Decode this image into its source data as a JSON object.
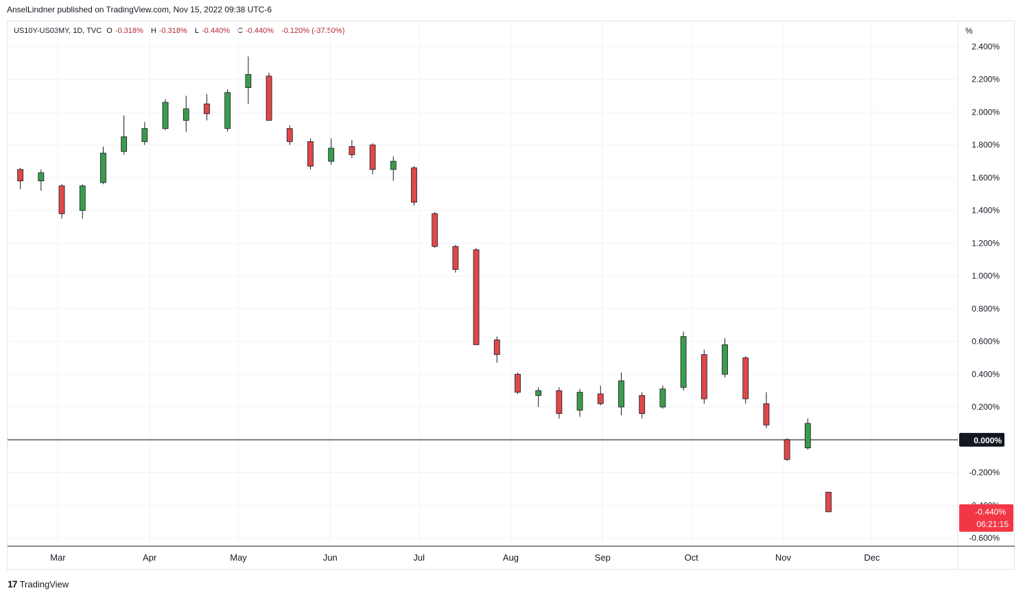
{
  "header": {
    "published": "AnselLindner published on TradingView.com, Nov 15, 2022 09:38 UTC-6"
  },
  "legend": {
    "symbol": "US10Y-US03MY, 1D, TVC",
    "o_label": "O",
    "o": "-0.318%",
    "h_label": "H",
    "h": "-0.318%",
    "l_label": "L",
    "l": "-0.440%",
    "c_label": "C",
    "c": "-0.440%",
    "change": "-0.120% (-37.50%)"
  },
  "axis": {
    "unit": "%",
    "y_ticks": [
      "2.400%",
      "2.200%",
      "2.000%",
      "1.800%",
      "1.600%",
      "1.400%",
      "1.200%",
      "1.000%",
      "0.800%",
      "0.600%",
      "0.400%",
      "0.200%",
      "0.000%",
      "-0.200%",
      "-0.400%",
      "-0.600%"
    ],
    "x_ticks": [
      "Mar",
      "Apr",
      "May",
      "Jun",
      "Jul",
      "Aug",
      "Sep",
      "Oct",
      "Nov",
      "Dec"
    ]
  },
  "price_label": {
    "value": "-0.440%",
    "countdown": "06:21:15"
  },
  "zero_label": "0.000%",
  "footer": {
    "brand": "TradingView",
    "logo_icon": "tradingview-logo-icon"
  },
  "colors": {
    "up": "#3d9b4c",
    "down": "#e04848",
    "zero_line": "#787b86",
    "price_bg": "#f23645"
  },
  "chart_data": {
    "type": "candlestick",
    "symbol": "US10Y-US03MY",
    "interval": "1D",
    "ylim": [
      -0.65,
      2.45
    ],
    "zero_line": 0.0,
    "last": -0.44,
    "ohlc_sampled_weekly": [
      {
        "x": "2022-02-14",
        "o": 1.65,
        "h": 1.66,
        "l": 1.53,
        "c": 1.58
      },
      {
        "x": "2022-02-21",
        "o": 1.58,
        "h": 1.65,
        "l": 1.52,
        "c": 1.63
      },
      {
        "x": "2022-02-28",
        "o": 1.55,
        "h": 1.56,
        "l": 1.35,
        "c": 1.38
      },
      {
        "x": "2022-03-07",
        "o": 1.4,
        "h": 1.56,
        "l": 1.35,
        "c": 1.55
      },
      {
        "x": "2022-03-14",
        "o": 1.57,
        "h": 1.79,
        "l": 1.56,
        "c": 1.75
      },
      {
        "x": "2022-03-21",
        "o": 1.76,
        "h": 1.98,
        "l": 1.74,
        "c": 1.85
      },
      {
        "x": "2022-03-28",
        "o": 1.82,
        "h": 1.94,
        "l": 1.8,
        "c": 1.9
      },
      {
        "x": "2022-04-04",
        "o": 1.9,
        "h": 2.08,
        "l": 1.89,
        "c": 2.06
      },
      {
        "x": "2022-04-11",
        "o": 1.95,
        "h": 2.1,
        "l": 1.88,
        "c": 2.02
      },
      {
        "x": "2022-04-18",
        "o": 2.05,
        "h": 2.11,
        "l": 1.95,
        "c": 1.99
      },
      {
        "x": "2022-04-25",
        "o": 1.9,
        "h": 2.14,
        "l": 1.88,
        "c": 2.12
      },
      {
        "x": "2022-05-02",
        "o": 2.15,
        "h": 2.34,
        "l": 2.05,
        "c": 2.23
      },
      {
        "x": "2022-05-09",
        "o": 2.22,
        "h": 2.24,
        "l": 1.95,
        "c": 1.95
      },
      {
        "x": "2022-05-16",
        "o": 1.9,
        "h": 1.92,
        "l": 1.8,
        "c": 1.82
      },
      {
        "x": "2022-05-23",
        "o": 1.82,
        "h": 1.84,
        "l": 1.65,
        "c": 1.67
      },
      {
        "x": "2022-05-30",
        "o": 1.7,
        "h": 1.84,
        "l": 1.68,
        "c": 1.78
      },
      {
        "x": "2022-06-06",
        "o": 1.79,
        "h": 1.83,
        "l": 1.72,
        "c": 1.74
      },
      {
        "x": "2022-06-13",
        "o": 1.8,
        "h": 1.81,
        "l": 1.62,
        "c": 1.65
      },
      {
        "x": "2022-06-20",
        "o": 1.65,
        "h": 1.73,
        "l": 1.58,
        "c": 1.7
      },
      {
        "x": "2022-06-27",
        "o": 1.66,
        "h": 1.67,
        "l": 1.43,
        "c": 1.45
      },
      {
        "x": "2022-07-04",
        "o": 1.38,
        "h": 1.39,
        "l": 1.17,
        "c": 1.18
      },
      {
        "x": "2022-07-11",
        "o": 1.18,
        "h": 1.19,
        "l": 1.02,
        "c": 1.04
      },
      {
        "x": "2022-07-18",
        "o": 1.16,
        "h": 1.17,
        "l": 0.58,
        "c": 0.58
      },
      {
        "x": "2022-07-25",
        "o": 0.61,
        "h": 0.63,
        "l": 0.47,
        "c": 0.52
      },
      {
        "x": "2022-08-01",
        "o": 0.4,
        "h": 0.41,
        "l": 0.28,
        "c": 0.29
      },
      {
        "x": "2022-08-08",
        "o": 0.27,
        "h": 0.32,
        "l": 0.2,
        "c": 0.3
      },
      {
        "x": "2022-08-15",
        "o": 0.3,
        "h": 0.32,
        "l": 0.13,
        "c": 0.16
      },
      {
        "x": "2022-08-22",
        "o": 0.18,
        "h": 0.31,
        "l": 0.14,
        "c": 0.29
      },
      {
        "x": "2022-08-29",
        "o": 0.28,
        "h": 0.33,
        "l": 0.21,
        "c": 0.22
      },
      {
        "x": "2022-09-05",
        "o": 0.2,
        "h": 0.41,
        "l": 0.15,
        "c": 0.36
      },
      {
        "x": "2022-09-12",
        "o": 0.27,
        "h": 0.29,
        "l": 0.13,
        "c": 0.16
      },
      {
        "x": "2022-09-19",
        "o": 0.2,
        "h": 0.33,
        "l": 0.19,
        "c": 0.31
      },
      {
        "x": "2022-09-26",
        "o": 0.32,
        "h": 0.66,
        "l": 0.3,
        "c": 0.63
      },
      {
        "x": "2022-10-03",
        "o": 0.52,
        "h": 0.55,
        "l": 0.22,
        "c": 0.25
      },
      {
        "x": "2022-10-10",
        "o": 0.4,
        "h": 0.62,
        "l": 0.38,
        "c": 0.58
      },
      {
        "x": "2022-10-17",
        "o": 0.5,
        "h": 0.51,
        "l": 0.22,
        "c": 0.25
      },
      {
        "x": "2022-10-24",
        "o": 0.22,
        "h": 0.29,
        "l": 0.07,
        "c": 0.09
      },
      {
        "x": "2022-10-31",
        "o": 0.0,
        "h": 0.01,
        "l": -0.13,
        "c": -0.12
      },
      {
        "x": "2022-11-07",
        "o": -0.05,
        "h": 0.13,
        "l": -0.06,
        "c": 0.1
      },
      {
        "x": "2022-11-14",
        "o": -0.32,
        "h": -0.32,
        "l": -0.44,
        "c": -0.44
      }
    ]
  }
}
